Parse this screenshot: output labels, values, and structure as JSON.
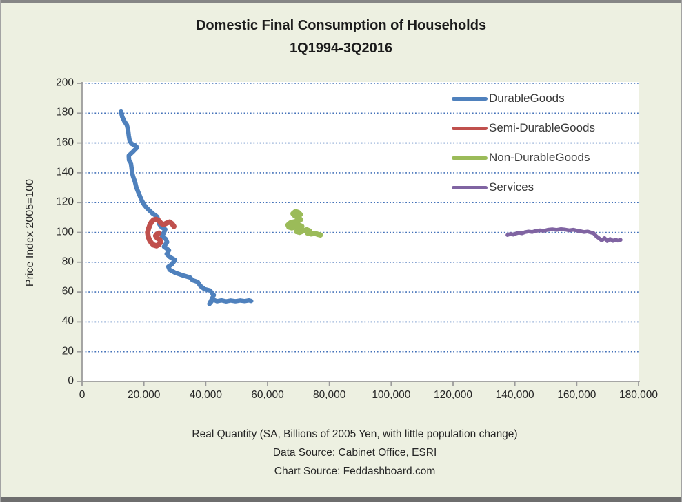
{
  "title": {
    "line1": "Domestic Final Consumption of Households",
    "line2": "1Q1994-3Q2016"
  },
  "footer": {
    "x_axis_title": "Real Quantity (SA, Billions of 2005 Yen, with little population change)",
    "data_source": "Data Source: Cabinet Office, ESRI",
    "chart_source": "Chart Source: Feddashboard.com"
  },
  "chart_data": {
    "type": "line",
    "title": "Domestic Final Consumption of Households 1Q1994-3Q2016",
    "xlabel": "Real Quantity (SA, Billions of 2005 Yen, with little population change)",
    "ylabel": "Price Index 2005=100",
    "xlim": [
      0,
      180000
    ],
    "ylim": [
      0,
      200
    ],
    "x_tick_step": 20000,
    "y_tick_step": 20,
    "x_ticks": [
      "0",
      "20,000",
      "40,000",
      "60,000",
      "80,000",
      "100,000",
      "120,000",
      "140,000",
      "160,000",
      "180,000"
    ],
    "y_ticks": [
      "0",
      "20",
      "40",
      "60",
      "80",
      "100",
      "120",
      "140",
      "160",
      "180",
      "200"
    ],
    "grid": "horizontal-dotted",
    "grid_color": "#4472B9",
    "axis_color": "#9C9C9C",
    "background_color": "#EDF0E1",
    "plot_background": "#FFFFFF",
    "legend_position": "top-right-inside",
    "series": [
      {
        "name": "DurableGoods",
        "color": "#4F81BD",
        "width": 6.5,
        "points": [
          [
            12600,
            181
          ],
          [
            13000,
            177.5
          ],
          [
            13700,
            174.5
          ],
          [
            14500,
            172
          ],
          [
            14900,
            168.5
          ],
          [
            15100,
            165
          ],
          [
            15400,
            161.5
          ],
          [
            16000,
            159.5
          ],
          [
            17000,
            158.5
          ],
          [
            17800,
            157
          ],
          [
            16400,
            154
          ],
          [
            15100,
            151.5
          ],
          [
            15200,
            148.5
          ],
          [
            15800,
            146.5
          ],
          [
            16000,
            143.5
          ],
          [
            16200,
            140
          ],
          [
            16500,
            137.5
          ],
          [
            17100,
            134
          ],
          [
            17500,
            130.5
          ],
          [
            18100,
            127.5
          ],
          [
            18700,
            124.5
          ],
          [
            19300,
            121.5
          ],
          [
            20100,
            118.5
          ],
          [
            20900,
            116.5
          ],
          [
            21900,
            114.5
          ],
          [
            22900,
            112.5
          ],
          [
            23700,
            111.5
          ],
          [
            24300,
            110.5
          ],
          [
            24700,
            108
          ],
          [
            25000,
            105.5
          ],
          [
            25700,
            103.5
          ],
          [
            26900,
            102
          ],
          [
            26400,
            99.5
          ],
          [
            25900,
            97.5
          ],
          [
            27100,
            95.5
          ],
          [
            27500,
            93.5
          ],
          [
            26500,
            90.5
          ],
          [
            28100,
            88
          ],
          [
            27400,
            85.5
          ],
          [
            28400,
            83.5
          ],
          [
            30100,
            81.5
          ],
          [
            29000,
            78.5
          ],
          [
            27900,
            77
          ],
          [
            28300,
            75
          ],
          [
            30100,
            73
          ],
          [
            32600,
            71.2
          ],
          [
            34900,
            69.8
          ],
          [
            35700,
            68
          ],
          [
            37400,
            66.8
          ],
          [
            38300,
            64
          ],
          [
            39600,
            62
          ],
          [
            41400,
            61
          ],
          [
            42600,
            58
          ],
          [
            41200,
            52
          ],
          [
            42400,
            55
          ],
          [
            43600,
            53.8
          ],
          [
            45100,
            54.4
          ],
          [
            46600,
            53.7
          ],
          [
            48100,
            54.3
          ],
          [
            49600,
            53.8
          ],
          [
            51100,
            54.3
          ],
          [
            52600,
            53.9
          ],
          [
            54000,
            54.4
          ],
          [
            54700,
            54
          ]
        ]
      },
      {
        "name": "Semi-DurableGoods",
        "color": "#C0504D",
        "width": 7.5,
        "points": [
          [
            29700,
            104
          ],
          [
            29100,
            105.8
          ],
          [
            28300,
            107
          ],
          [
            27300,
            106.2
          ],
          [
            26400,
            105.2
          ],
          [
            25500,
            106.2
          ],
          [
            24800,
            108
          ],
          [
            23900,
            108.8
          ],
          [
            23100,
            108.4
          ],
          [
            22400,
            106.8
          ],
          [
            21900,
            104.8
          ],
          [
            21500,
            102.5
          ],
          [
            21200,
            100
          ],
          [
            21400,
            97.2
          ],
          [
            21800,
            95
          ],
          [
            22400,
            93
          ],
          [
            23200,
            91.5
          ],
          [
            24100,
            91
          ],
          [
            24900,
            92
          ],
          [
            25500,
            93.6
          ],
          [
            25100,
            95.2
          ],
          [
            24300,
            96.2
          ],
          [
            23800,
            97.8
          ],
          [
            24300,
            99
          ],
          [
            24900,
            99.6
          ]
        ]
      },
      {
        "name": "Non-DurableGoods",
        "color": "#9BBB59",
        "width": 7.5,
        "points": [
          [
            70600,
            112
          ],
          [
            69900,
            113.4
          ],
          [
            69000,
            114
          ],
          [
            68200,
            112.6
          ],
          [
            68800,
            111.2
          ],
          [
            69900,
            110
          ],
          [
            70700,
            108.6
          ],
          [
            69700,
            107.6
          ],
          [
            68500,
            107
          ],
          [
            67400,
            106.4
          ],
          [
            66600,
            105
          ],
          [
            66900,
            103.6
          ],
          [
            67900,
            103
          ],
          [
            69000,
            104
          ],
          [
            70100,
            105
          ],
          [
            71100,
            104
          ],
          [
            70200,
            102
          ],
          [
            69300,
            100.6
          ],
          [
            70400,
            100
          ],
          [
            71500,
            101
          ],
          [
            72700,
            101.8
          ],
          [
            73600,
            101
          ],
          [
            72900,
            99.6
          ],
          [
            74100,
            99
          ],
          [
            75300,
            99.4
          ],
          [
            76300,
            98.7
          ],
          [
            77100,
            98.3
          ]
        ]
      },
      {
        "name": "Services",
        "color": "#8064A2",
        "width": 5.5,
        "points": [
          [
            137600,
            98.3
          ],
          [
            138600,
            99
          ],
          [
            139500,
            98.5
          ],
          [
            140400,
            99.3
          ],
          [
            141300,
            99.8
          ],
          [
            142300,
            99.4
          ],
          [
            143300,
            100.2
          ],
          [
            144400,
            100.6
          ],
          [
            145600,
            100.3
          ],
          [
            146800,
            101
          ],
          [
            148100,
            101.4
          ],
          [
            149400,
            101.1
          ],
          [
            150700,
            101.8
          ],
          [
            152100,
            102.1
          ],
          [
            153500,
            101.7
          ],
          [
            154900,
            102.2
          ],
          [
            156300,
            101.9
          ],
          [
            157600,
            101.4
          ],
          [
            158900,
            101.8
          ],
          [
            160100,
            101.2
          ],
          [
            161300,
            100.8
          ],
          [
            162400,
            100.3
          ],
          [
            163500,
            100.6
          ],
          [
            164500,
            100
          ],
          [
            165500,
            99.4
          ],
          [
            166400,
            97.3
          ],
          [
            167300,
            96
          ],
          [
            168100,
            94.6
          ],
          [
            169000,
            96.2
          ],
          [
            169900,
            94.2
          ],
          [
            170800,
            95.6
          ],
          [
            171700,
            94.3
          ],
          [
            172500,
            95.2
          ],
          [
            173300,
            94.5
          ],
          [
            174200,
            95
          ]
        ]
      }
    ]
  }
}
